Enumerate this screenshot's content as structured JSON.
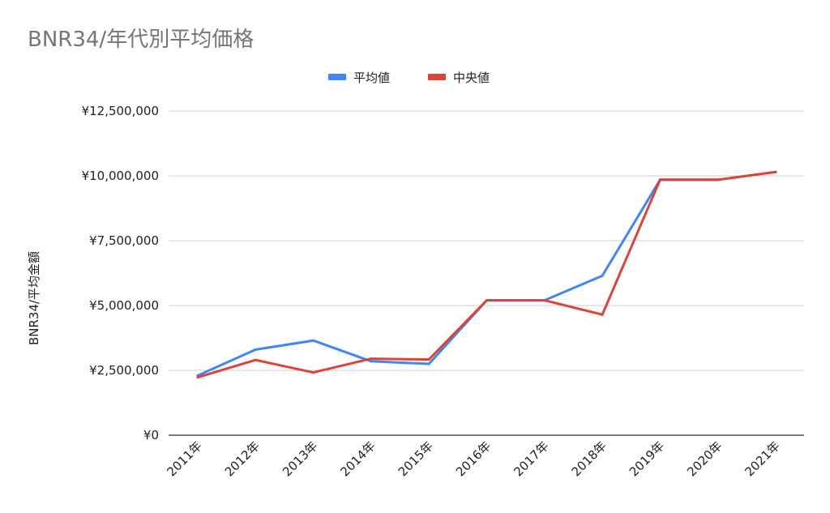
{
  "chart_data": {
    "type": "line",
    "title": "BNR34/年代別平均価格",
    "xlabel": "",
    "ylabel": "BNR34/平均金額",
    "categories": [
      "2011年",
      "2012年",
      "2013年",
      "2014年",
      "2015年",
      "2016年",
      "2017年",
      "2018年",
      "2019年",
      "2020年",
      "2021年"
    ],
    "yticks": [
      "¥0",
      "¥2,500,000",
      "¥5,000,000",
      "¥7,500,000",
      "¥10,000,000",
      "¥12,500,000"
    ],
    "ylim": [
      0,
      12500000
    ],
    "grid": true,
    "legend_position": "top",
    "series": [
      {
        "name": "平均値",
        "color": "#4285f4",
        "values": [
          2300000,
          3300000,
          3650000,
          2850000,
          2750000,
          5200000,
          5200000,
          6150000,
          9850000,
          9850000,
          10150000
        ]
      },
      {
        "name": "中央値",
        "color": "#db4437",
        "values": [
          2230000,
          2900000,
          2420000,
          2950000,
          2920000,
          5200000,
          5200000,
          4650000,
          9850000,
          9850000,
          10150000
        ]
      }
    ]
  }
}
